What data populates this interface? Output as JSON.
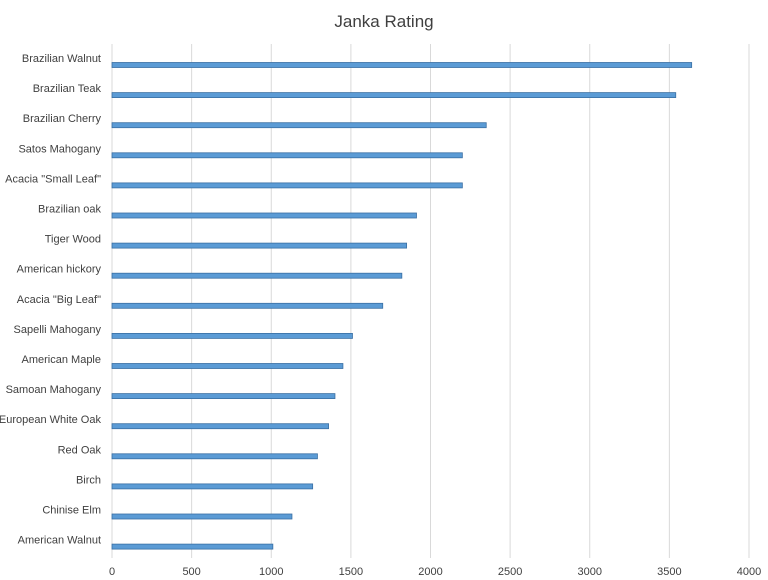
{
  "chart_data": {
    "type": "bar",
    "orientation": "horizontal",
    "title": "Janka Rating",
    "xlabel": "",
    "ylabel": "",
    "xlim": [
      0,
      4000
    ],
    "xticks": [
      "0",
      "500",
      "1000",
      "1500",
      "2000",
      "2500",
      "3000",
      "3500",
      "4000"
    ],
    "grid": true,
    "legend": "none",
    "bar_color": "#5b9bd5",
    "bar_edge_color": "#3a6fa3",
    "grid_color": "#d9d9d9",
    "categories": [
      "Brazilian Walnut",
      "Brazilian Teak",
      "Brazilian Cherry",
      "Satos Mahogany",
      "Acacia \"Small Leaf\"",
      "Brazilian oak",
      "Tiger Wood",
      "American hickory",
      "Acacia \"Big Leaf\"",
      "Sapelli Mahogany",
      "American Maple",
      "Samoan Mahogany",
      "European White Oak",
      "Red Oak",
      "Birch",
      "Chinise Elm",
      "American Walnut"
    ],
    "values": [
      3640,
      3540,
      2350,
      2200,
      2200,
      1912,
      1850,
      1820,
      1700,
      1510,
      1450,
      1400,
      1360,
      1290,
      1260,
      1130,
      1010
    ]
  }
}
